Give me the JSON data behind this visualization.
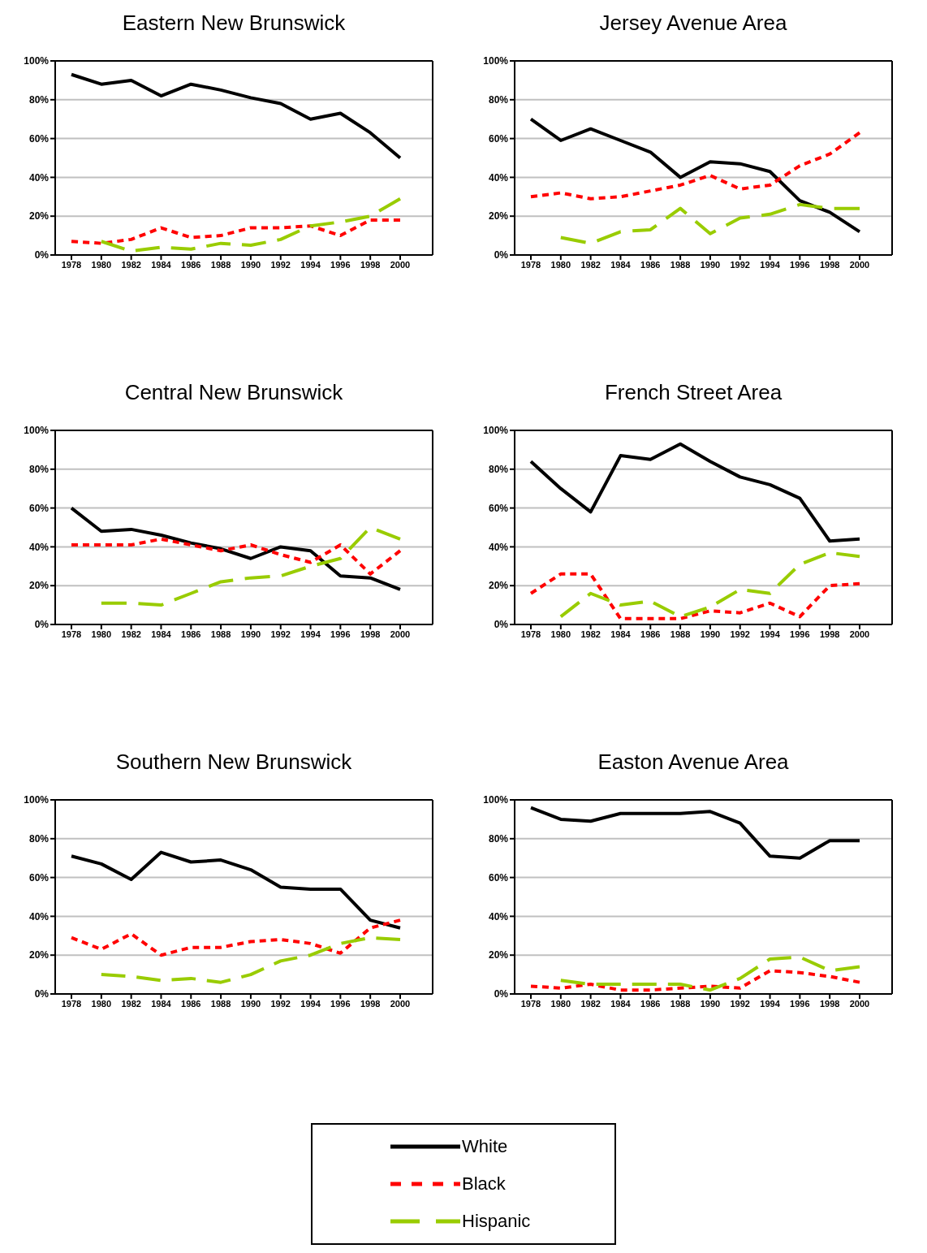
{
  "chart_data": [
    {
      "type": "line",
      "title": "Eastern New Brunswick",
      "categories": [
        "1978",
        "1980",
        "1982",
        "1984",
        "1986",
        "1988",
        "1990",
        "1992",
        "1994",
        "1996",
        "1998",
        "2000"
      ],
      "ylim": [
        0,
        100
      ],
      "yticks": [
        {
          "value": 0,
          "label": "0%"
        },
        {
          "value": 20,
          "label": "20%"
        },
        {
          "value": 40,
          "label": "40%"
        },
        {
          "value": 60,
          "label": "60%"
        },
        {
          "value": 80,
          "label": "80%"
        },
        {
          "value": 100,
          "label": "100%"
        }
      ],
      "grid": "y",
      "marker": "none",
      "series": [
        {
          "color": "#000000",
          "line_style": "solid",
          "values": [
            93,
            88,
            90,
            82,
            88,
            85,
            81,
            78,
            70,
            73,
            63,
            50
          ]
        },
        {
          "color": "#ff0000",
          "line_style": "dotted",
          "values": [
            7,
            6,
            8,
            14,
            9,
            10,
            14,
            14,
            15,
            10,
            18,
            18
          ]
        },
        {
          "color": "#99cc00",
          "line_style": "dashed",
          "values": [
            null,
            7,
            2,
            4,
            3,
            6,
            5,
            8,
            15,
            17,
            20,
            29
          ]
        }
      ]
    },
    {
      "type": "line",
      "title": "Jersey Avenue Area",
      "categories": [
        "1978",
        "1980",
        "1982",
        "1984",
        "1986",
        "1988",
        "1990",
        "1992",
        "1994",
        "1996",
        "1998",
        "2000"
      ],
      "ylim": [
        0,
        100
      ],
      "yticks": [
        {
          "value": 0,
          "label": "0%"
        },
        {
          "value": 20,
          "label": "20%"
        },
        {
          "value": 40,
          "label": "40%"
        },
        {
          "value": 60,
          "label": "60%"
        },
        {
          "value": 80,
          "label": "80%"
        },
        {
          "value": 100,
          "label": "100%"
        }
      ],
      "grid": "y",
      "marker": "none",
      "series": [
        {
          "color": "#000000",
          "line_style": "solid",
          "values": [
            70,
            59,
            65,
            59,
            53,
            40,
            48,
            47,
            43,
            28,
            22,
            12
          ]
        },
        {
          "color": "#ff0000",
          "line_style": "dotted",
          "values": [
            30,
            32,
            29,
            30,
            33,
            36,
            41,
            34,
            36,
            46,
            52,
            63
          ]
        },
        {
          "color": "#99cc00",
          "line_style": "dashed",
          "values": [
            null,
            9,
            6,
            12,
            13,
            24,
            11,
            19,
            21,
            26,
            24,
            24
          ]
        }
      ]
    },
    {
      "type": "line",
      "title": "Central New Brunswick",
      "categories": [
        "1978",
        "1980",
        "1982",
        "1984",
        "1986",
        "1988",
        "1990",
        "1992",
        "1994",
        "1996",
        "1998",
        "2000"
      ],
      "ylim": [
        0,
        100
      ],
      "yticks": [
        {
          "value": 0,
          "label": "0%"
        },
        {
          "value": 20,
          "label": "20%"
        },
        {
          "value": 40,
          "label": "40%"
        },
        {
          "value": 60,
          "label": "60%"
        },
        {
          "value": 80,
          "label": "80%"
        },
        {
          "value": 100,
          "label": "100%"
        }
      ],
      "grid": "y",
      "marker": "none",
      "series": [
        {
          "color": "#000000",
          "line_style": "solid",
          "values": [
            60,
            48,
            49,
            46,
            42,
            39,
            34,
            40,
            38,
            25,
            24,
            18
          ]
        },
        {
          "color": "#ff0000",
          "line_style": "dotted",
          "values": [
            41,
            41,
            41,
            44,
            41,
            38,
            41,
            36,
            32,
            41,
            26,
            38
          ]
        },
        {
          "color": "#99cc00",
          "line_style": "dashed",
          "values": [
            null,
            11,
            11,
            10,
            16,
            22,
            24,
            25,
            30,
            34,
            50,
            44
          ]
        }
      ]
    },
    {
      "type": "line",
      "title": "French Street Area",
      "categories": [
        "1978",
        "1980",
        "1982",
        "1984",
        "1986",
        "1988",
        "1990",
        "1992",
        "1994",
        "1996",
        "1998",
        "2000"
      ],
      "ylim": [
        0,
        100
      ],
      "yticks": [
        {
          "value": 0,
          "label": "0%"
        },
        {
          "value": 20,
          "label": "20%"
        },
        {
          "value": 40,
          "label": "40%"
        },
        {
          "value": 60,
          "label": "60%"
        },
        {
          "value": 80,
          "label": "80%"
        },
        {
          "value": 100,
          "label": "100%"
        }
      ],
      "grid": "y",
      "marker": "none",
      "series": [
        {
          "color": "#000000",
          "line_style": "solid",
          "values": [
            84,
            70,
            58,
            87,
            85,
            93,
            84,
            76,
            72,
            65,
            43,
            44
          ]
        },
        {
          "color": "#ff0000",
          "line_style": "dotted",
          "values": [
            16,
            26,
            26,
            3,
            3,
            3,
            7,
            6,
            11,
            4,
            20,
            21
          ]
        },
        {
          "color": "#99cc00",
          "line_style": "dashed",
          "values": [
            null,
            4,
            16,
            10,
            12,
            4,
            9,
            18,
            16,
            31,
            37,
            35
          ]
        }
      ]
    },
    {
      "type": "line",
      "title": "Southern New Brunswick",
      "categories": [
        "1978",
        "1980",
        "1982",
        "1984",
        "1986",
        "1988",
        "1990",
        "1992",
        "1994",
        "1996",
        "1998",
        "2000"
      ],
      "ylim": [
        0,
        100
      ],
      "yticks": [
        {
          "value": 0,
          "label": "0%"
        },
        {
          "value": 20,
          "label": "20%"
        },
        {
          "value": 40,
          "label": "40%"
        },
        {
          "value": 60,
          "label": "60%"
        },
        {
          "value": 80,
          "label": "80%"
        },
        {
          "value": 100,
          "label": "100%"
        }
      ],
      "grid": "y",
      "marker": "none",
      "series": [
        {
          "color": "#000000",
          "line_style": "solid",
          "values": [
            71,
            67,
            59,
            73,
            68,
            69,
            64,
            55,
            54,
            54,
            38,
            34
          ]
        },
        {
          "color": "#ff0000",
          "line_style": "dotted",
          "values": [
            29,
            23,
            31,
            20,
            24,
            24,
            27,
            28,
            26,
            21,
            34,
            38
          ]
        },
        {
          "color": "#99cc00",
          "line_style": "dashed",
          "values": [
            null,
            10,
            9,
            7,
            8,
            6,
            10,
            17,
            20,
            26,
            29,
            28
          ]
        }
      ]
    },
    {
      "type": "line",
      "title": "Easton Avenue Area",
      "categories": [
        "1978",
        "1980",
        "1982",
        "1984",
        "1986",
        "1988",
        "1990",
        "1992",
        "1994",
        "1996",
        "1998",
        "2000"
      ],
      "ylim": [
        0,
        100
      ],
      "yticks": [
        {
          "value": 0,
          "label": "0%"
        },
        {
          "value": 20,
          "label": "20%"
        },
        {
          "value": 40,
          "label": "40%"
        },
        {
          "value": 60,
          "label": "60%"
        },
        {
          "value": 80,
          "label": "80%"
        },
        {
          "value": 100,
          "label": "100%"
        }
      ],
      "grid": "y",
      "marker": "none",
      "legend": "bottom",
      "series": [
        {
          "name": "White",
          "color": "#000000",
          "line_style": "solid",
          "values": [
            96,
            90,
            89,
            93,
            93,
            93,
            94,
            88,
            71,
            70,
            79,
            79
          ]
        },
        {
          "name": "Black",
          "color": "#ff0000",
          "line_style": "dotted",
          "values": [
            4,
            3,
            5,
            2,
            2,
            3,
            4,
            3,
            12,
            11,
            9,
            6
          ]
        },
        {
          "name": "Hispanic",
          "color": "#99cc00",
          "line_style": "dashed",
          "values": [
            null,
            7,
            5,
            5,
            5,
            5,
            2,
            8,
            18,
            19,
            12,
            14
          ]
        }
      ]
    }
  ]
}
